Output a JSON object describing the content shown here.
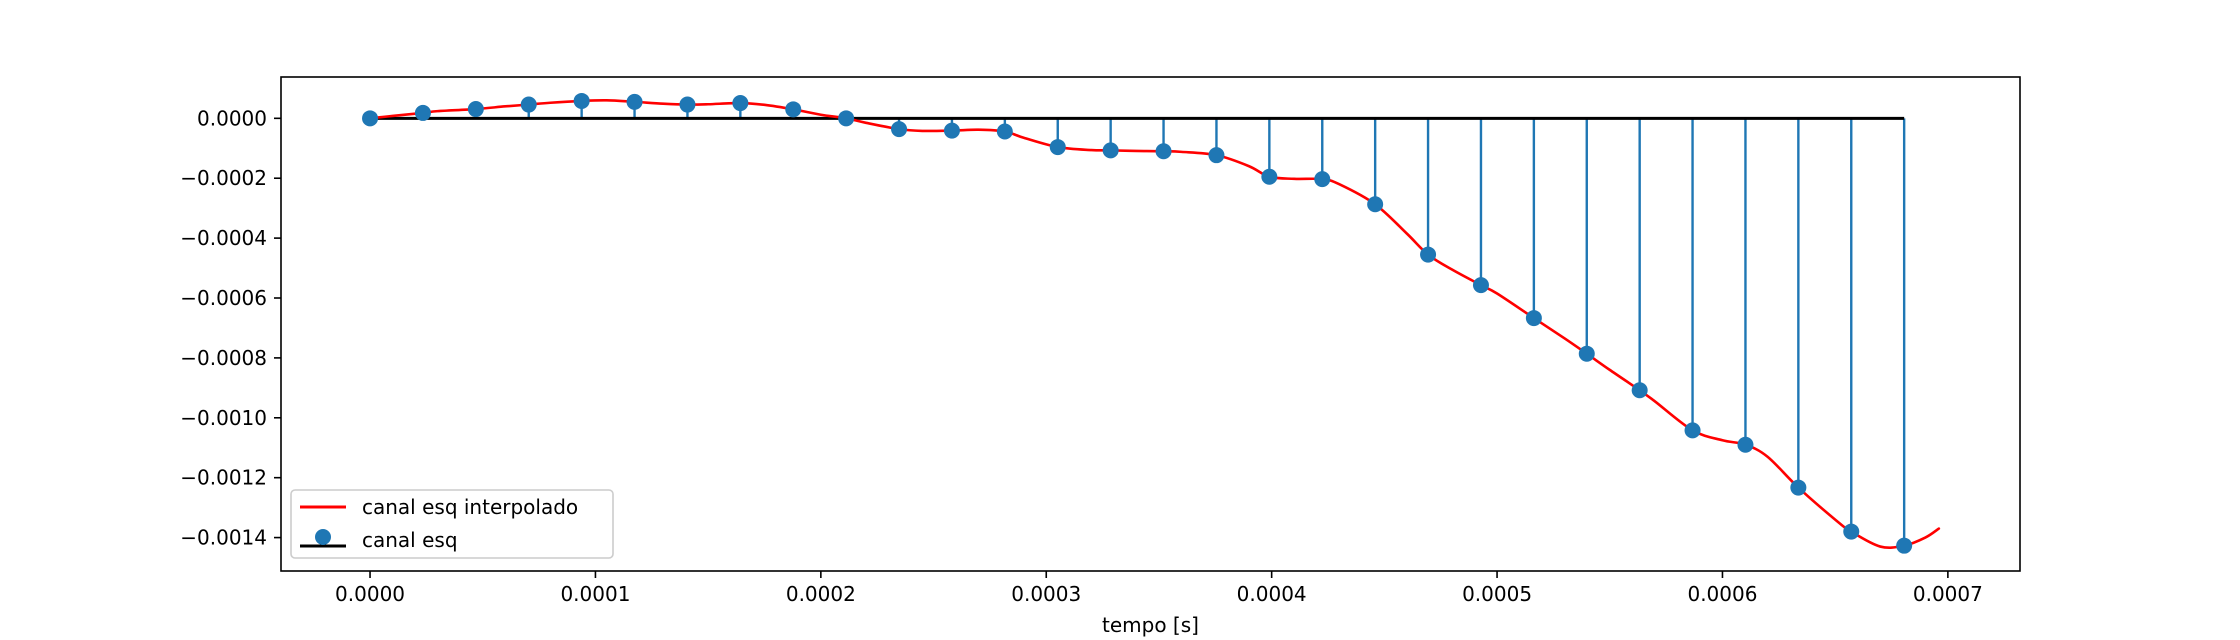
{
  "chart_data": {
    "type": "line",
    "title": "",
    "xlabel": "tempo [s]",
    "ylabel": "",
    "xlim": [
      -3.95e-05,
      0.000732
    ],
    "ylim": [
      -0.0015116,
      0.000138
    ],
    "x_ticks": [
      0,
      0.0001,
      0.0002,
      0.0003,
      0.0004,
      0.0005,
      0.0006,
      0.0007
    ],
    "x_tick_labels": [
      "0.0000",
      "0.0001",
      "0.0002",
      "0.0003",
      "0.0004",
      "0.0005",
      "0.0006",
      "0.0007"
    ],
    "y_ticks": [
      0,
      -0.0002,
      -0.0004,
      -0.0006,
      -0.0008,
      -0.001,
      -0.0012,
      -0.0014
    ],
    "y_tick_labels": [
      "0.0000",
      "−0.0002",
      "−0.0004",
      "−0.0006",
      "−0.0008",
      "−0.0010",
      "−0.0012",
      "−0.0014"
    ],
    "grid": false,
    "legend_position": "bottom-left",
    "legend": [
      {
        "label": "canal esq interpolado",
        "marker": "line"
      },
      {
        "label": "canal esq",
        "marker": "stem"
      }
    ],
    "series": [
      {
        "name": "canal esq",
        "kind": "stem",
        "color": "#1f77b4",
        "baseline_color": "#000000",
        "x": [
          0,
          2.347e-05,
          4.694e-05,
          7.041e-05,
          9.388e-05,
          0.00011735,
          0.00014082,
          0.00016429,
          0.00018776,
          0.00021122,
          0.00023469,
          0.00025816,
          0.00028163,
          0.0003051,
          0.00032857,
          0.00035204,
          0.00037551,
          0.00039898,
          0.00042245,
          0.00044592,
          0.00046939,
          0.00049286,
          0.00051633,
          0.0005398,
          0.00056327,
          0.00058673,
          0.0006102,
          0.00063367,
          0.00065714,
          0.00068061
        ],
        "y": [
          0,
          1.8e-05,
          3.1e-05,
          4.6e-05,
          5.8e-05,
          5.5e-05,
          4.6e-05,
          5.1e-05,
          3e-05,
          0,
          -3.6e-05,
          -4.1e-05,
          -4.4e-05,
          -9.6e-05,
          -0.000107,
          -0.00011,
          -0.000123,
          -0.000195,
          -0.000203,
          -0.000287,
          -0.000455,
          -0.000557,
          -0.000667,
          -0.000786,
          -0.000908,
          -0.001042,
          -0.00109,
          -0.001233,
          -0.00138,
          -0.001427
        ]
      },
      {
        "name": "canal esq interpolado",
        "kind": "line",
        "color": "#ff0000",
        "x": [
          0,
          1e-05,
          2.347e-05,
          3e-05,
          4.694e-05,
          6e-05,
          7.041e-05,
          8e-05,
          9.388e-05,
          0.000105,
          0.00011735,
          0.00013,
          0.00014082,
          0.00015,
          0.00016429,
          0.000175,
          0.00018776,
          0.0002,
          0.00021122,
          0.00022,
          0.00023469,
          0.000245,
          0.00025816,
          0.00027,
          0.00028163,
          0.00029,
          0.0003051,
          0.00032,
          0.00032857,
          0.00034,
          0.00035204,
          0.00036,
          0.00037551,
          0.00039,
          0.00039898,
          0.00041,
          0.00042245,
          0.00043,
          0.00044592,
          0.00046,
          0.00046939,
          0.00048,
          0.00049286,
          0.0005,
          0.00051633,
          0.00053,
          0.0005398,
          0.00055,
          0.00056327,
          0.00057,
          0.00058673,
          0.0006,
          0.0006102,
          0.00062,
          0.00063367,
          0.00065,
          0.00065714,
          0.00067,
          0.00068061,
          0.00069,
          0.000696
        ],
        "y": [
          0,
          8e-06,
          1.8e-05,
          2.4e-05,
          3.1e-05,
          4e-05,
          4.6e-05,
          5.2e-05,
          5.8e-05,
          6e-05,
          5.5e-05,
          4.9e-05,
          4.6e-05,
          4.7e-05,
          5.1e-05,
          4.5e-05,
          3e-05,
          1.2e-05,
          0,
          -1.5e-05,
          -3.6e-05,
          -4.2e-05,
          -4.1e-05,
          -3.8e-05,
          -4.4e-05,
          -6.5e-05,
          -9.6e-05,
          -0.000106,
          -0.000107,
          -0.000109,
          -0.00011,
          -0.000112,
          -0.000123,
          -0.00016,
          -0.000195,
          -0.000202,
          -0.000203,
          -0.00022,
          -0.000287,
          -0.000385,
          -0.000455,
          -0.000505,
          -0.000557,
          -0.000585,
          -0.000667,
          -0.000735,
          -0.000786,
          -0.00084,
          -0.000908,
          -0.000945,
          -0.001042,
          -0.001075,
          -0.00109,
          -0.00113,
          -0.001233,
          -0.00134,
          -0.00138,
          -0.00143,
          -0.001427,
          -0.0014,
          -0.00137
        ]
      }
    ]
  }
}
